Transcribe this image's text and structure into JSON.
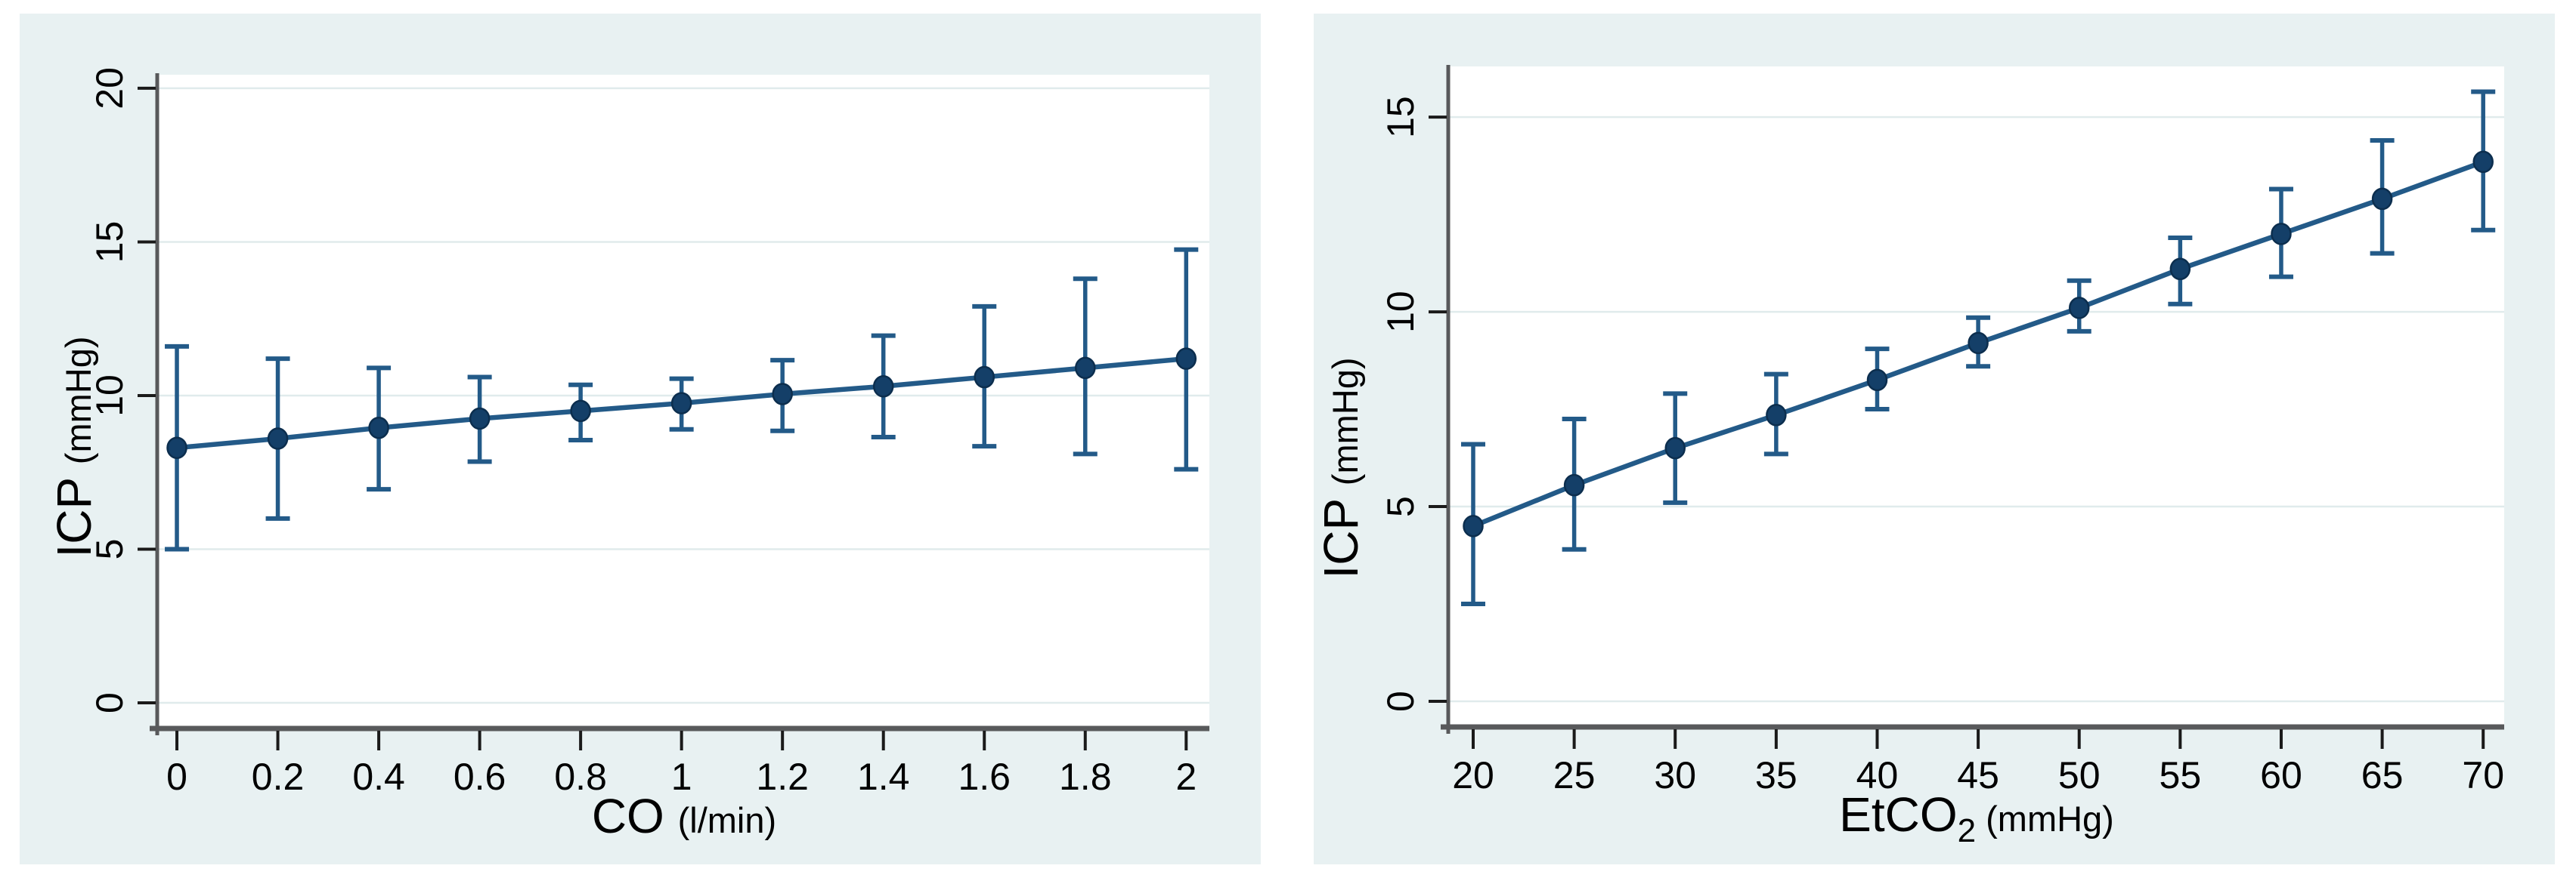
{
  "figure": {
    "description": "Two error-bar line plots of intracranial pressure",
    "colors": {
      "panel_bg": "#e8f1f2",
      "plot_bg": "#ffffff",
      "grid": "#e0ebec",
      "axis": "#58595b",
      "tick": "#1a1a1a",
      "text": "#000000",
      "line": "#235a88",
      "error_bar": "#235a88",
      "marker_fill": "#143f68",
      "marker_stroke": "#0c2e4e"
    }
  },
  "chart_data": [
    {
      "type": "line",
      "title": "",
      "xlabel_parts": [
        {
          "t": "CO ",
          "size": 64,
          "dy": 0
        },
        {
          "t": "(l/min)",
          "size": 47,
          "dy": 0
        }
      ],
      "ylabel_parts": [
        {
          "t": "ICP ",
          "size": 64,
          "dy": 0
        },
        {
          "t": "(mmHg)",
          "size": 47,
          "dy": 0
        }
      ],
      "xlabel": "CO (l/min)",
      "ylabel": "ICP (mmHg)",
      "x": [
        0,
        0.2,
        0.4,
        0.6,
        0.8,
        1.0,
        1.2,
        1.4,
        1.6,
        1.8,
        2.0
      ],
      "y": [
        8.3,
        8.6,
        8.95,
        9.25,
        9.5,
        9.75,
        10.05,
        10.3,
        10.6,
        10.9,
        11.2
      ],
      "ci_low": [
        5.0,
        6.0,
        6.95,
        7.85,
        8.55,
        8.9,
        8.85,
        8.65,
        8.35,
        8.1,
        7.6
      ],
      "ci_high": [
        11.6,
        11.2,
        10.9,
        10.6,
        10.35,
        10.55,
        11.15,
        11.95,
        12.9,
        13.8,
        14.75
      ],
      "x_ticks": [
        {
          "v": 0,
          "label": "0"
        },
        {
          "v": 0.2,
          "label": "0.2"
        },
        {
          "v": 0.4,
          "label": "0.4"
        },
        {
          "v": 0.6,
          "label": "0.6"
        },
        {
          "v": 0.8,
          "label": "0.8"
        },
        {
          "v": 1,
          "label": "1"
        },
        {
          "v": 1.2,
          "label": "1.2"
        },
        {
          "v": 1.4,
          "label": "1.4"
        },
        {
          "v": 1.6,
          "label": "1.6"
        },
        {
          "v": 1.8,
          "label": "1.8"
        },
        {
          "v": 2,
          "label": "2"
        }
      ],
      "y_ticks": [
        {
          "v": 0,
          "label": "0"
        },
        {
          "v": 5,
          "label": "5"
        },
        {
          "v": 10,
          "label": "10"
        },
        {
          "v": 15,
          "label": "15"
        },
        {
          "v": 20,
          "label": "20"
        }
      ],
      "xlim": [
        -0.036,
        2.046
      ],
      "ylim": [
        -0.76,
        20.44
      ],
      "grid": true,
      "legend": "none"
    },
    {
      "type": "line",
      "title": "",
      "xlabel_parts": [
        {
          "t": "EtCO",
          "size": 64,
          "dy": 0
        },
        {
          "t": "2",
          "size": 44,
          "dy": 14
        },
        {
          "t": " (mmHg)",
          "size": 47,
          "dy": -14
        }
      ],
      "ylabel_parts": [
        {
          "t": "ICP ",
          "size": 64,
          "dy": 0
        },
        {
          "t": "(mmHg)",
          "size": 47,
          "dy": 0
        }
      ],
      "xlabel": "EtCO2 (mmHg)",
      "ylabel": "ICP (mmHg)",
      "x": [
        20,
        25,
        30,
        35,
        40,
        45,
        50,
        55,
        60,
        65,
        70
      ],
      "y": [
        4.5,
        5.55,
        6.5,
        7.35,
        8.25,
        9.2,
        10.1,
        11.1,
        12.0,
        12.9,
        13.85
      ],
      "ci_low": [
        2.5,
        3.9,
        5.1,
        6.35,
        7.5,
        8.6,
        9.5,
        10.2,
        10.9,
        11.5,
        12.1
      ],
      "ci_high": [
        6.6,
        7.25,
        7.9,
        8.4,
        9.05,
        9.85,
        10.8,
        11.9,
        13.15,
        14.4,
        15.65
      ],
      "x_ticks": [
        {
          "v": 20,
          "label": "20"
        },
        {
          "v": 25,
          "label": "25"
        },
        {
          "v": 30,
          "label": "30"
        },
        {
          "v": 35,
          "label": "35"
        },
        {
          "v": 40,
          "label": "40"
        },
        {
          "v": 45,
          "label": "45"
        },
        {
          "v": 50,
          "label": "50"
        },
        {
          "v": 55,
          "label": "55"
        },
        {
          "v": 60,
          "label": "60"
        },
        {
          "v": 65,
          "label": "65"
        },
        {
          "v": 70,
          "label": "70"
        }
      ],
      "y_ticks": [
        {
          "v": 0,
          "label": "0"
        },
        {
          "v": 5,
          "label": "5"
        },
        {
          "v": 10,
          "label": "10"
        },
        {
          "v": 15,
          "label": "15"
        }
      ],
      "xlim": [
        18.84,
        71.04
      ],
      "ylim": [
        -0.6,
        16.3
      ],
      "grid": true,
      "legend": "none"
    }
  ]
}
